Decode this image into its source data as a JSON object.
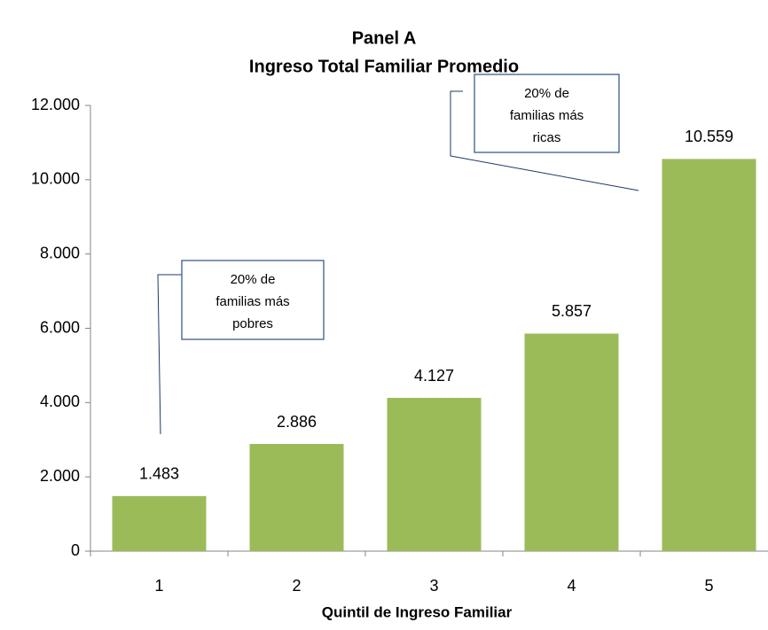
{
  "chart_data": {
    "type": "bar",
    "title": "Panel A",
    "subtitle": "Ingreso Total Familiar Promedio",
    "x_label": "Quintil de Ingreso Familiar",
    "categories": [
      "1",
      "2",
      "3",
      "4",
      "5"
    ],
    "values": [
      1483,
      2886,
      4127,
      5857,
      10559
    ],
    "value_labels": [
      "1.483",
      "2.886",
      "4.127",
      "5.857",
      "10.559"
    ],
    "color": "#9bbb59",
    "ylim": [
      0,
      12000
    ],
    "yticks": [
      0,
      {
        "value": 2000,
        "label": "2.000"
      },
      {
        "value": 4000,
        "label": "4.000"
      },
      {
        "value": 6000,
        "label": "6.000"
      },
      {
        "value": 8000,
        "label": "8.000"
      },
      {
        "value": 10000,
        "label": "10.000"
      },
      {
        "value": 12000,
        "label": "12.000"
      }
    ],
    "grid": false,
    "annotations": [
      {
        "lines": [
          "20% de",
          "familias más",
          "pobres"
        ]
      },
      {
        "lines": [
          "20% de",
          "familias más",
          "ricas"
        ]
      }
    ]
  }
}
